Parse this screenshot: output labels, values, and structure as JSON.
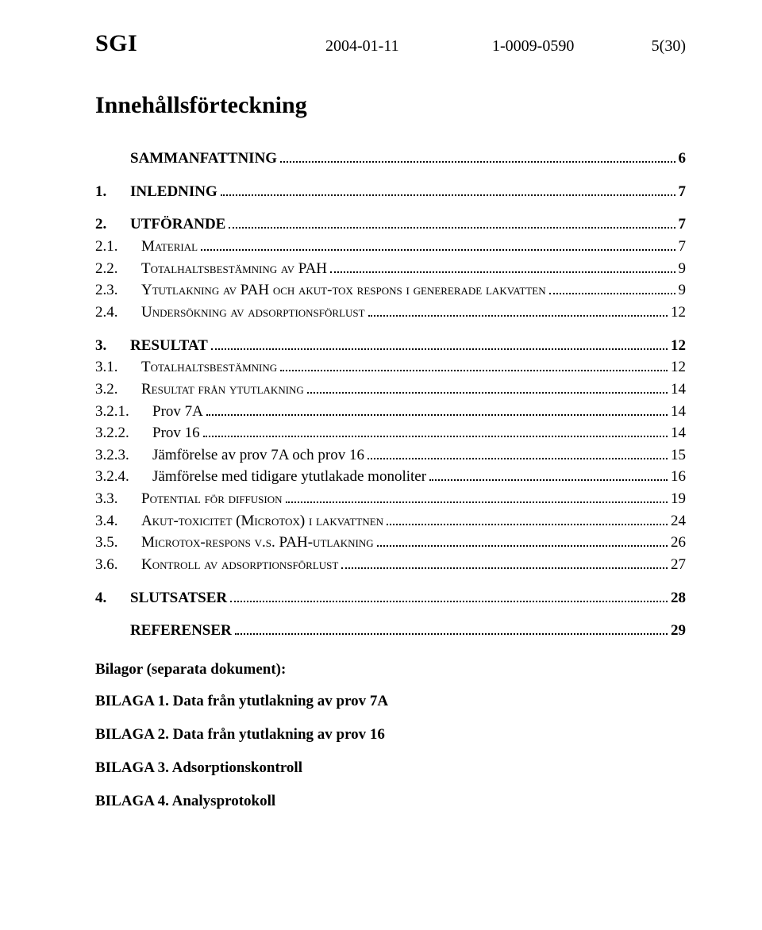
{
  "header": {
    "org": "SGI",
    "date": "2004-01-11",
    "docno": "1-0009-0590",
    "pageinfo": "5(30)"
  },
  "title": "Innehållsförteckning",
  "toc": [
    {
      "level": 0,
      "num": "",
      "label": "SAMMANFATTNING",
      "page": "6",
      "gap_before": false
    },
    {
      "level": 0,
      "num": "1.",
      "label": "INLEDNING",
      "page": "7",
      "gap_before": true
    },
    {
      "level": 0,
      "num": "2.",
      "label": "UTFÖRANDE",
      "page": "7",
      "gap_before": true
    },
    {
      "level": 1,
      "num": "2.1.",
      "label": "Material",
      "page": "7",
      "gap_before": false
    },
    {
      "level": 1,
      "num": "2.2.",
      "label": "Totalhaltsbestämning av PAH",
      "page": "9",
      "gap_before": false
    },
    {
      "level": 1,
      "num": "2.3.",
      "label": "Ytutlakning av PAH och akut-tox respons i genererade lakvatten",
      "page": "9",
      "gap_before": false
    },
    {
      "level": 1,
      "num": "2.4.",
      "label": "Undersökning av adsorptionsförlust",
      "page": "12",
      "gap_before": false
    },
    {
      "level": 0,
      "num": "3.",
      "label": "RESULTAT",
      "page": "12",
      "gap_before": true
    },
    {
      "level": 1,
      "num": "3.1.",
      "label": "Totalhaltsbestämning",
      "page": "12",
      "gap_before": false
    },
    {
      "level": 1,
      "num": "3.2.",
      "label": "Resultat från ytutlakning",
      "page": "14",
      "gap_before": false
    },
    {
      "level": 2,
      "num": "3.2.1.",
      "label": "Prov 7A",
      "page": "14",
      "gap_before": false
    },
    {
      "level": 2,
      "num": "3.2.2.",
      "label": "Prov 16",
      "page": "14",
      "gap_before": false
    },
    {
      "level": 2,
      "num": "3.2.3.",
      "label": "Jämförelse av prov 7A och prov 16",
      "page": "15",
      "gap_before": false
    },
    {
      "level": 2,
      "num": "3.2.4.",
      "label": "Jämförelse med tidigare ytutlakade monoliter",
      "page": "16",
      "gap_before": false
    },
    {
      "level": 1,
      "num": "3.3.",
      "label": "Potential för diffusion",
      "page": "19",
      "gap_before": false
    },
    {
      "level": 1,
      "num": "3.4.",
      "label": "Akut-toxicitet (Microtox) i lakvattnen",
      "page": "24",
      "gap_before": false
    },
    {
      "level": 1,
      "num": "3.5.",
      "label": "Microtox-respons v.s. PAH-utlakning",
      "page": "26",
      "gap_before": false
    },
    {
      "level": 1,
      "num": "3.6.",
      "label": "Kontroll av adsorptionsförlust",
      "page": "27",
      "gap_before": false
    },
    {
      "level": 0,
      "num": "4.",
      "label": "SLUTSATSER",
      "page": "28",
      "gap_before": true
    },
    {
      "level": 0,
      "num": "",
      "label": "REFERENSER",
      "page": "29",
      "gap_before": true
    }
  ],
  "bilagor": {
    "heading": "Bilagor (separata dokument):",
    "items": [
      "BILAGA 1. Data från ytutlakning av prov 7A",
      "BILAGA 2. Data från ytutlakning av  prov 16",
      "BILAGA 3. Adsorptionskontroll",
      "BILAGA 4. Analysprotokoll"
    ]
  }
}
